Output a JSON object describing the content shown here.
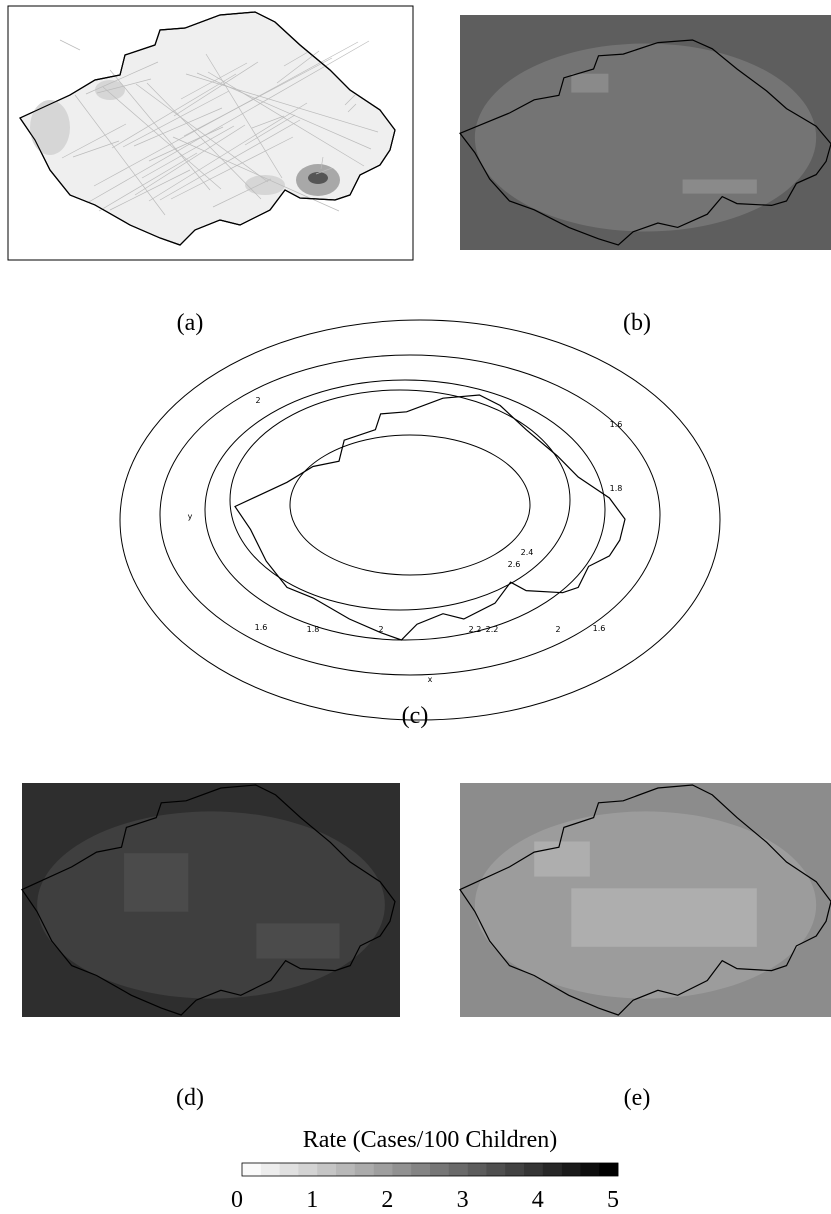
{
  "panel_labels": [
    "(a)",
    "(b)",
    "(c)",
    "(d)",
    "(e)"
  ],
  "panel_c": {
    "y_axis": "y",
    "x_axis": "x",
    "contour_labels": [
      "2",
      "1.6",
      "1.8",
      "2.4",
      "2.6",
      "1.6",
      "1.8",
      "2",
      "2.2",
      "2.2",
      "2",
      "1.6"
    ]
  },
  "colorbar": {
    "title": "Rate (Cases/100 Children)",
    "ticks": [
      0,
      1,
      2,
      3,
      4,
      5
    ]
  }
}
